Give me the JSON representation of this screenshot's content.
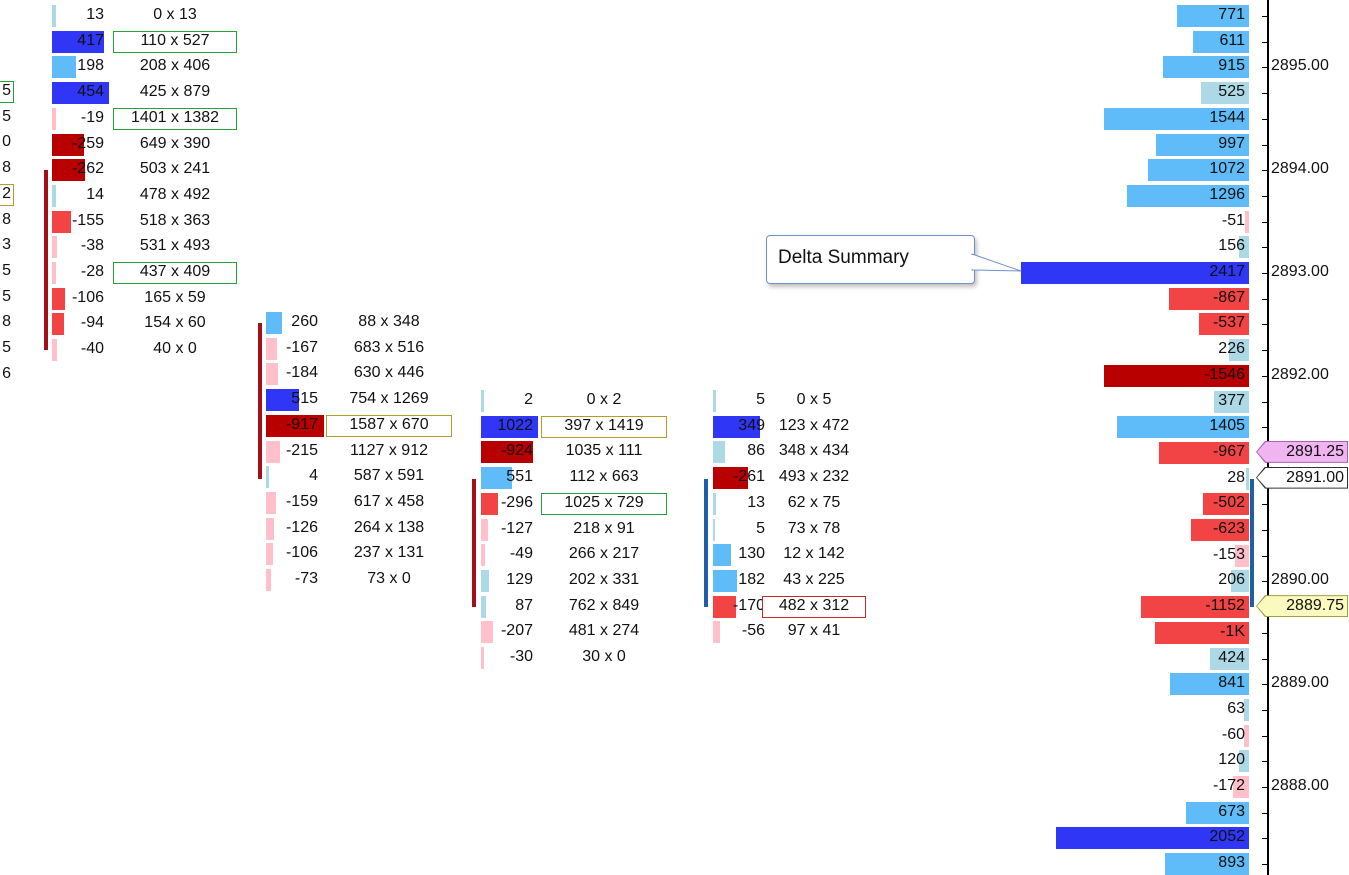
{
  "colors": {
    "buy_strong": "#2f36f5",
    "buy_mid": "#60bcf8",
    "buy_light": "#add8e6",
    "sell_strong": "#b80000",
    "sell_mid": "#f24444",
    "sell_light": "#ffc0cb",
    "box_green": "#22a33a",
    "box_olive": "#b39b2c",
    "box_red": "#c8282a",
    "line_red": "#a3101a",
    "line_blue": "#1f5fa6"
  },
  "left_edge": {
    "values": [
      "5",
      "5",
      "0",
      "8",
      "2",
      "8",
      "3",
      "5",
      "5",
      "8",
      "5",
      "6"
    ],
    "boxes": [
      "green",
      "",
      "",
      "",
      "olive",
      "",
      "",
      "",
      "",
      "",
      "",
      ""
    ]
  },
  "columns": [
    {
      "rows": [
        {
          "delta": "13",
          "va": "0 x 13",
          "bar": "buy_light",
          "w": 4
        },
        {
          "delta": "417",
          "va": "110 x 527",
          "bar": "buy_strong",
          "w": 52,
          "box": "green"
        },
        {
          "delta": "198",
          "va": "208 x 406",
          "bar": "buy_mid",
          "w": 24
        },
        {
          "delta": "454",
          "va": "425 x 879",
          "bar": "buy_strong",
          "w": 57
        },
        {
          "delta": "-19",
          "va": "1401 x 1382",
          "bar": "sell_light",
          "w": 4,
          "box": "green"
        },
        {
          "delta": "-259",
          "va": "649 x 390",
          "bar": "sell_strong",
          "w": 32
        },
        {
          "delta": "-262",
          "va": "503 x 241",
          "bar": "sell_strong",
          "w": 33
        },
        {
          "delta": "14",
          "va": "478 x 492",
          "bar": "buy_light",
          "w": 4
        },
        {
          "delta": "-155",
          "va": "518 x 363",
          "bar": "sell_mid",
          "w": 19
        },
        {
          "delta": "-38",
          "va": "531 x 493",
          "bar": "sell_light",
          "w": 5
        },
        {
          "delta": "-28",
          "va": "437 x 409",
          "bar": "sell_light",
          "w": 4,
          "box": "green"
        },
        {
          "delta": "-106",
          "va": "165 x 59",
          "bar": "sell_mid",
          "w": 13
        },
        {
          "delta": "-94",
          "va": "154 x 60",
          "bar": "sell_mid",
          "w": 12
        },
        {
          "delta": "-40",
          "va": "40 x 0",
          "bar": "sell_light",
          "w": 5
        }
      ]
    },
    {
      "rows": [
        {
          "delta": "260",
          "va": "88 x 348",
          "bar": "buy_mid",
          "w": 16
        },
        {
          "delta": "-167",
          "va": "683 x 516",
          "bar": "sell_light",
          "w": 11
        },
        {
          "delta": "-184",
          "va": "630 x 446",
          "bar": "sell_light",
          "w": 12
        },
        {
          "delta": "515",
          "va": "754 x 1269",
          "bar": "buy_strong",
          "w": 33
        },
        {
          "delta": "-917",
          "va": "1587 x 670",
          "bar": "sell_strong",
          "w": 58,
          "box": "olive"
        },
        {
          "delta": "-215",
          "va": "1127 x 912",
          "bar": "sell_light",
          "w": 14
        },
        {
          "delta": "4",
          "va": "587 x 591",
          "bar": "buy_light",
          "w": 3
        },
        {
          "delta": "-159",
          "va": "617 x 458",
          "bar": "sell_light",
          "w": 10
        },
        {
          "delta": "-126",
          "va": "264 x 138",
          "bar": "sell_light",
          "w": 8
        },
        {
          "delta": "-106",
          "va": "237 x 131",
          "bar": "sell_light",
          "w": 7
        },
        {
          "delta": "-73",
          "va": "73 x 0",
          "bar": "sell_light",
          "w": 5
        }
      ]
    },
    {
      "rows": [
        {
          "delta": "2",
          "va": "0 x 2",
          "bar": "buy_light",
          "w": 3
        },
        {
          "delta": "1022",
          "va": "397 x 1419",
          "bar": "buy_strong",
          "w": 57,
          "box": "olive"
        },
        {
          "delta": "-924",
          "va": "1035 x 111",
          "bar": "sell_strong",
          "w": 52
        },
        {
          "delta": "551",
          "va": "112 x 663",
          "bar": "buy_mid",
          "w": 31
        },
        {
          "delta": "-296",
          "va": "1025 x 729",
          "bar": "sell_mid",
          "w": 17,
          "box": "green"
        },
        {
          "delta": "-127",
          "va": "218 x 91",
          "bar": "sell_light",
          "w": 7
        },
        {
          "delta": "-49",
          "va": "266 x 217",
          "bar": "sell_light",
          "w": 4
        },
        {
          "delta": "129",
          "va": "202 x 331",
          "bar": "buy_light",
          "w": 8
        },
        {
          "delta": "87",
          "va": "762 x 849",
          "bar": "buy_light",
          "w": 5
        },
        {
          "delta": "-207",
          "va": "481 x 274",
          "bar": "sell_light",
          "w": 12
        },
        {
          "delta": "-30",
          "va": "30 x 0",
          "bar": "sell_light",
          "w": 3
        }
      ]
    },
    {
      "rows": [
        {
          "delta": "5",
          "va": "0 x 5",
          "bar": "buy_light",
          "w": 3
        },
        {
          "delta": "349",
          "va": "123 x 472",
          "bar": "buy_strong",
          "w": 47
        },
        {
          "delta": "86",
          "va": "348 x 434",
          "bar": "buy_light",
          "w": 12
        },
        {
          "delta": "-261",
          "va": "493 x 232",
          "bar": "sell_strong",
          "w": 35
        },
        {
          "delta": "13",
          "va": "62 x 75",
          "bar": "buy_light",
          "w": 3
        },
        {
          "delta": "5",
          "va": "73 x 78",
          "bar": "buy_light",
          "w": 2
        },
        {
          "delta": "130",
          "va": "12 x 142",
          "bar": "buy_mid",
          "w": 18
        },
        {
          "delta": "182",
          "va": "43 x 225",
          "bar": "buy_mid",
          "w": 24
        },
        {
          "delta": "-170",
          "va": "482 x 312",
          "bar": "sell_mid",
          "w": 23,
          "box": "red"
        },
        {
          "delta": "-56",
          "va": "97 x 41",
          "bar": "sell_light",
          "w": 7
        }
      ]
    }
  ],
  "summary": {
    "rows": [
      {
        "delta": "771",
        "bar": "buy_mid",
        "w": 72
      },
      {
        "delta": "611",
        "bar": "buy_mid",
        "w": 56
      },
      {
        "delta": "915",
        "bar": "buy_mid",
        "w": 86
      },
      {
        "delta": "525",
        "bar": "buy_light",
        "w": 48
      },
      {
        "delta": "1544",
        "bar": "buy_mid",
        "w": 145
      },
      {
        "delta": "997",
        "bar": "buy_mid",
        "w": 93
      },
      {
        "delta": "1072",
        "bar": "buy_mid",
        "w": 101
      },
      {
        "delta": "1296",
        "bar": "buy_mid",
        "w": 122
      },
      {
        "delta": "-51",
        "bar": "sell_light",
        "w": 4
      },
      {
        "delta": "156",
        "bar": "buy_light",
        "w": 10
      },
      {
        "delta": "2417",
        "bar": "buy_strong",
        "w": 228
      },
      {
        "delta": "-867",
        "bar": "sell_mid",
        "w": 80
      },
      {
        "delta": "-537",
        "bar": "sell_mid",
        "w": 50
      },
      {
        "delta": "226",
        "bar": "buy_light",
        "w": 20
      },
      {
        "delta": "-1546",
        "bar": "sell_strong",
        "w": 145
      },
      {
        "delta": "377",
        "bar": "buy_light",
        "w": 35
      },
      {
        "delta": "1405",
        "bar": "buy_mid",
        "w": 132
      },
      {
        "delta": "-967",
        "bar": "sell_mid",
        "w": 90
      },
      {
        "delta": "28",
        "bar": "buy_light",
        "w": 3
      },
      {
        "delta": "-502",
        "bar": "sell_mid",
        "w": 46
      },
      {
        "delta": "-623",
        "bar": "sell_mid",
        "w": 58
      },
      {
        "delta": "-153",
        "bar": "sell_light",
        "w": 14
      },
      {
        "delta": "206",
        "bar": "buy_light",
        "w": 18
      },
      {
        "delta": "-1152",
        "bar": "sell_mid",
        "w": 108
      },
      {
        "delta": "-1K",
        "bar": "sell_mid",
        "w": 94
      },
      {
        "delta": "424",
        "bar": "buy_light",
        "w": 39
      },
      {
        "delta": "841",
        "bar": "buy_mid",
        "w": 79
      },
      {
        "delta": "63",
        "bar": "buy_light",
        "w": 5
      },
      {
        "delta": "-60",
        "bar": "sell_light",
        "w": 5
      },
      {
        "delta": "120",
        "bar": "buy_light",
        "w": 10
      },
      {
        "delta": "-172",
        "bar": "sell_light",
        "w": 16
      },
      {
        "delta": "673",
        "bar": "buy_mid",
        "w": 63
      },
      {
        "delta": "2052",
        "bar": "buy_strong",
        "w": 193
      },
      {
        "delta": "893",
        "bar": "buy_mid",
        "w": 84
      }
    ]
  },
  "price_axis": {
    "labels": [
      {
        "text": "2895.00",
        "row": 2
      },
      {
        "text": "2894.00",
        "row": 6
      },
      {
        "text": "2893.00",
        "row": 10
      },
      {
        "text": "2892.00",
        "row": 14
      },
      {
        "text": "2890.00",
        "row": 22
      },
      {
        "text": "2889.00",
        "row": 26
      },
      {
        "text": "2888.00",
        "row": 30
      }
    ],
    "markers": [
      {
        "text": "2891.25",
        "row": 17,
        "bg": "#f0b4f0",
        "border": "#b060b0"
      },
      {
        "text": "2891.00",
        "row": 18,
        "bg": "#ffffff",
        "border": "#333333"
      },
      {
        "text": "2889.75",
        "row": 23,
        "bg": "#fafabe",
        "border": "#a0a040"
      }
    ]
  },
  "callout": {
    "text": "Delta Summary"
  }
}
